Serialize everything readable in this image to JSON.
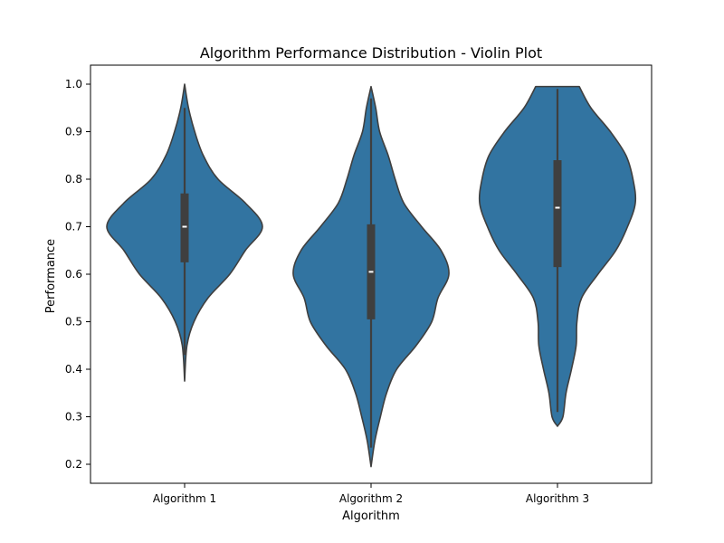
{
  "colors": {
    "violin_fill": "#3274a1",
    "violin_edge": "#3f3f3f",
    "box": "#3f3f3f",
    "median": "#ffffff",
    "axes": "#000000"
  },
  "chart_data": {
    "type": "violin",
    "title": "Algorithm Performance Distribution - Violin Plot",
    "xlabel": "Algorithm",
    "ylabel": "Performance",
    "categories": [
      "Algorithm 1",
      "Algorithm 2",
      "Algorithm 3"
    ],
    "ylim": [
      0.16,
      1.04
    ],
    "yticks": [
      0.2,
      0.3,
      0.4,
      0.5,
      0.6,
      0.7,
      0.8,
      0.9,
      1.0
    ],
    "ytick_labels": [
      "0.2",
      "0.3",
      "0.4",
      "0.5",
      "0.6",
      "0.7",
      "0.8",
      "0.9",
      "1.0"
    ],
    "grid": false,
    "legend": "none",
    "series": [
      {
        "category": "Algorithm 1",
        "min": 0.375,
        "q1": 0.625,
        "median": 0.7,
        "q3": 0.77,
        "max": 1.0,
        "whisker_low": 0.43,
        "whisker_high": 0.95,
        "density_profile": [
          [
            0.375,
            0.0
          ],
          [
            0.45,
            0.03
          ],
          [
            0.5,
            0.12
          ],
          [
            0.55,
            0.3
          ],
          [
            0.6,
            0.58
          ],
          [
            0.65,
            0.78
          ],
          [
            0.7,
            1.0
          ],
          [
            0.75,
            0.78
          ],
          [
            0.8,
            0.43
          ],
          [
            0.85,
            0.24
          ],
          [
            0.9,
            0.13
          ],
          [
            0.95,
            0.05
          ],
          [
            1.0,
            0.0
          ]
        ]
      },
      {
        "category": "Algorithm 2",
        "min": 0.195,
        "q1": 0.505,
        "median": 0.605,
        "q3": 0.705,
        "max": 0.995,
        "whisker_low": 0.235,
        "whisker_high": 0.97,
        "density_profile": [
          [
            0.195,
            0.0
          ],
          [
            0.25,
            0.05
          ],
          [
            0.3,
            0.12
          ],
          [
            0.35,
            0.2
          ],
          [
            0.4,
            0.33
          ],
          [
            0.45,
            0.58
          ],
          [
            0.5,
            0.78
          ],
          [
            0.55,
            0.86
          ],
          [
            0.6,
            1.0
          ],
          [
            0.65,
            0.9
          ],
          [
            0.7,
            0.65
          ],
          [
            0.75,
            0.42
          ],
          [
            0.8,
            0.31
          ],
          [
            0.85,
            0.22
          ],
          [
            0.9,
            0.11
          ],
          [
            0.95,
            0.06
          ],
          [
            0.995,
            0.0
          ]
        ]
      },
      {
        "category": "Algorithm 3",
        "min": 0.28,
        "q1": 0.615,
        "median": 0.74,
        "q3": 0.84,
        "max": 0.995,
        "whisker_low": 0.31,
        "whisker_high": 0.99,
        "density_profile": [
          [
            0.28,
            0.0
          ],
          [
            0.3,
            0.07
          ],
          [
            0.35,
            0.11
          ],
          [
            0.4,
            0.18
          ],
          [
            0.45,
            0.24
          ],
          [
            0.5,
            0.25
          ],
          [
            0.55,
            0.31
          ],
          [
            0.6,
            0.52
          ],
          [
            0.65,
            0.75
          ],
          [
            0.7,
            0.9
          ],
          [
            0.75,
            1.0
          ],
          [
            0.8,
            0.97
          ],
          [
            0.85,
            0.88
          ],
          [
            0.9,
            0.68
          ],
          [
            0.95,
            0.43
          ],
          [
            0.995,
            0.28
          ]
        ]
      }
    ]
  }
}
